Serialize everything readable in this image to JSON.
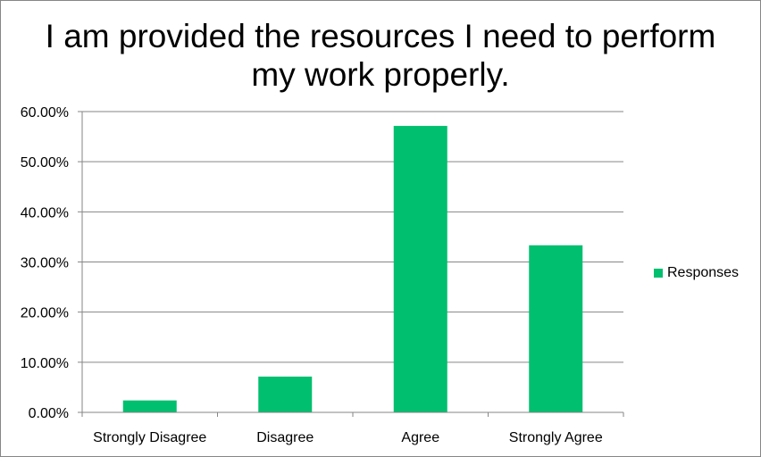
{
  "chart_data": {
    "type": "bar",
    "title": "I am provided the resources I need to perform my work properly.",
    "categories": [
      "Strongly Disagree",
      "Disagree",
      "Agree",
      "Strongly Agree"
    ],
    "series": [
      {
        "name": "Responses",
        "values": [
          2.38,
          7.14,
          57.14,
          33.33
        ],
        "color": "#00BF6F"
      }
    ],
    "y_ticks": [
      "0.00%",
      "10.00%",
      "20.00%",
      "30.00%",
      "40.00%",
      "50.00%",
      "60.00%"
    ],
    "ylim": [
      0,
      60
    ],
    "xlabel": "",
    "ylabel": "",
    "grid": true,
    "legend_position": "right"
  }
}
